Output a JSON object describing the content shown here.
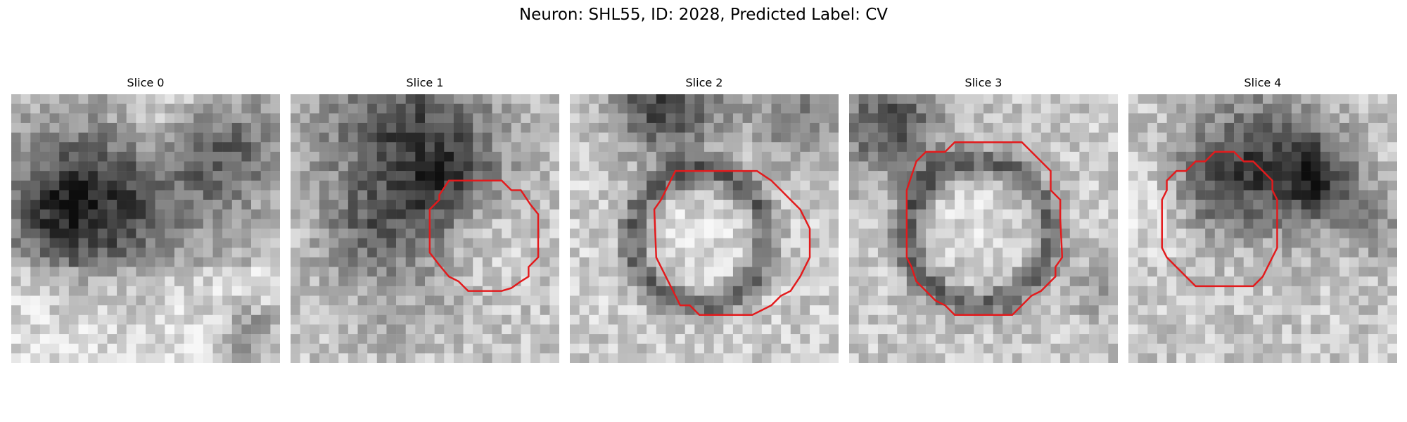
{
  "figure": {
    "title": "Neuron: SHL55, ID: 2028, Predicted Label: CV",
    "contour_color": "#e31a1c",
    "panels": [
      {
        "label": "Slice 0",
        "has_contour": false
      },
      {
        "label": "Slice 1",
        "has_contour": true
      },
      {
        "label": "Slice 2",
        "has_contour": true
      },
      {
        "label": "Slice 3",
        "has_contour": true
      },
      {
        "label": "Slice 4",
        "has_contour": true
      }
    ]
  }
}
